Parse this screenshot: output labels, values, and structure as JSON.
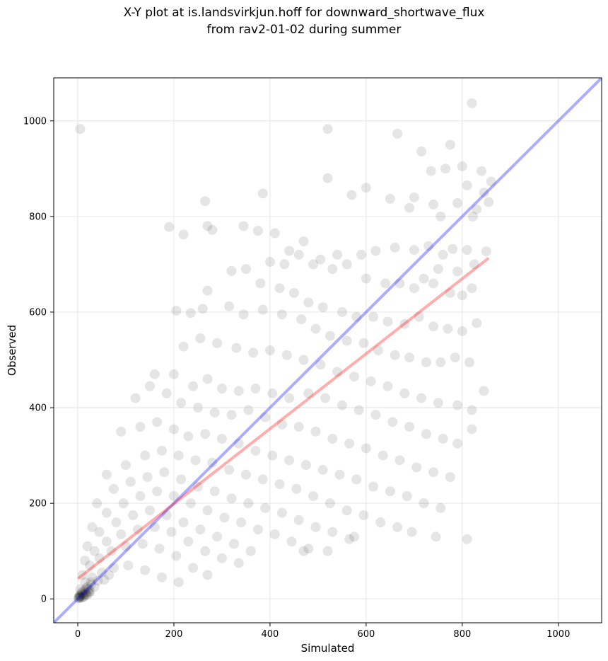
{
  "chart_data": {
    "type": "scatter",
    "title": [
      "X-Y plot at is.landsvirkjun.hoff for downward_shortwave_flux",
      "from rav2-01-02 during summer"
    ],
    "xlabel": "Simulated",
    "ylabel": "Observed",
    "xlim": [
      -50,
      1090
    ],
    "ylim": [
      -50,
      1090
    ],
    "xticks": [
      0,
      200,
      400,
      600,
      800,
      1000
    ],
    "yticks": [
      0,
      200,
      400,
      600,
      800,
      1000
    ],
    "grid": true,
    "colors": {
      "points": "#000000",
      "identity_line": "#0000ff",
      "fit_line": "#ff0000"
    },
    "identity_line": {
      "x": [
        -50,
        1090
      ],
      "y": [
        -50,
        1090
      ]
    },
    "fit_line": {
      "x": [
        0,
        855
      ],
      "y": [
        42,
        713
      ]
    },
    "series": [
      {
        "points": [
          [
            5,
            983
          ],
          [
            520,
            983
          ],
          [
            665,
            973
          ],
          [
            715,
            936
          ],
          [
            820,
            1037
          ],
          [
            775,
            950
          ],
          [
            735,
            895
          ],
          [
            840,
            895
          ],
          [
            765,
            900
          ],
          [
            800,
            905
          ],
          [
            860,
            873
          ],
          [
            810,
            865
          ],
          [
            845,
            850
          ],
          [
            855,
            830
          ],
          [
            790,
            828
          ],
          [
            830,
            815
          ],
          [
            822,
            800
          ],
          [
            265,
            832
          ],
          [
            385,
            848
          ],
          [
            570,
            845
          ],
          [
            600,
            860
          ],
          [
            520,
            880
          ],
          [
            650,
            837
          ],
          [
            700,
            840
          ],
          [
            755,
            800
          ],
          [
            740,
            825
          ],
          [
            690,
            818
          ],
          [
            190,
            778
          ],
          [
            220,
            762
          ],
          [
            270,
            780
          ],
          [
            280,
            772
          ],
          [
            345,
            780
          ],
          [
            375,
            770
          ],
          [
            410,
            765
          ],
          [
            440,
            728
          ],
          [
            470,
            748
          ],
          [
            505,
            710
          ],
          [
            540,
            720
          ],
          [
            590,
            720
          ],
          [
            620,
            728
          ],
          [
            660,
            735
          ],
          [
            700,
            730
          ],
          [
            730,
            738
          ],
          [
            760,
            720
          ],
          [
            780,
            732
          ],
          [
            810,
            730
          ],
          [
            850,
            727
          ],
          [
            790,
            685
          ],
          [
            750,
            690
          ],
          [
            720,
            670
          ],
          [
            320,
            686
          ],
          [
            350,
            690
          ],
          [
            400,
            705
          ],
          [
            430,
            700
          ],
          [
            460,
            720
          ],
          [
            490,
            700
          ],
          [
            530,
            690
          ],
          [
            560,
            700
          ],
          [
            600,
            670
          ],
          [
            640,
            660
          ],
          [
            670,
            660
          ],
          [
            700,
            650
          ],
          [
            740,
            660
          ],
          [
            775,
            640
          ],
          [
            800,
            635
          ],
          [
            825,
            700
          ],
          [
            820,
            650
          ],
          [
            270,
            645
          ],
          [
            380,
            660
          ],
          [
            420,
            650
          ],
          [
            450,
            640
          ],
          [
            480,
            620
          ],
          [
            510,
            610
          ],
          [
            550,
            600
          ],
          [
            580,
            590
          ],
          [
            615,
            590
          ],
          [
            645,
            580
          ],
          [
            680,
            575
          ],
          [
            710,
            590
          ],
          [
            740,
            570
          ],
          [
            770,
            565
          ],
          [
            800,
            560
          ],
          [
            830,
            577
          ],
          [
            205,
            603
          ],
          [
            235,
            598
          ],
          [
            260,
            607
          ],
          [
            315,
            612
          ],
          [
            345,
            595
          ],
          [
            385,
            605
          ],
          [
            425,
            595
          ],
          [
            465,
            585
          ],
          [
            495,
            565
          ],
          [
            525,
            550
          ],
          [
            560,
            540
          ],
          [
            595,
            535
          ],
          [
            625,
            520
          ],
          [
            660,
            510
          ],
          [
            690,
            505
          ],
          [
            725,
            495
          ],
          [
            755,
            495
          ],
          [
            785,
            505
          ],
          [
            815,
            495
          ],
          [
            845,
            435
          ],
          [
            220,
            528
          ],
          [
            255,
            545
          ],
          [
            290,
            535
          ],
          [
            330,
            525
          ],
          [
            365,
            515
          ],
          [
            400,
            520
          ],
          [
            435,
            510
          ],
          [
            470,
            500
          ],
          [
            505,
            490
          ],
          [
            540,
            475
          ],
          [
            575,
            465
          ],
          [
            610,
            455
          ],
          [
            645,
            445
          ],
          [
            680,
            430
          ],
          [
            715,
            420
          ],
          [
            750,
            410
          ],
          [
            790,
            405
          ],
          [
            820,
            395
          ],
          [
            160,
            470
          ],
          [
            200,
            470
          ],
          [
            240,
            445
          ],
          [
            270,
            460
          ],
          [
            300,
            440
          ],
          [
            335,
            435
          ],
          [
            370,
            440
          ],
          [
            405,
            430
          ],
          [
            440,
            420
          ],
          [
            480,
            430
          ],
          [
            515,
            420
          ],
          [
            550,
            405
          ],
          [
            585,
            395
          ],
          [
            620,
            385
          ],
          [
            655,
            370
          ],
          [
            690,
            360
          ],
          [
            725,
            345
          ],
          [
            760,
            335
          ],
          [
            790,
            325
          ],
          [
            820,
            355
          ],
          [
            120,
            420
          ],
          [
            150,
            445
          ],
          [
            185,
            430
          ],
          [
            215,
            410
          ],
          [
            250,
            400
          ],
          [
            285,
            390
          ],
          [
            320,
            385
          ],
          [
            355,
            395
          ],
          [
            390,
            380
          ],
          [
            425,
            365
          ],
          [
            460,
            360
          ],
          [
            495,
            350
          ],
          [
            530,
            335
          ],
          [
            565,
            325
          ],
          [
            600,
            315
          ],
          [
            635,
            300
          ],
          [
            670,
            290
          ],
          [
            705,
            275
          ],
          [
            740,
            265
          ],
          [
            775,
            255
          ],
          [
            810,
            125
          ],
          [
            90,
            350
          ],
          [
            130,
            360
          ],
          [
            165,
            370
          ],
          [
            200,
            355
          ],
          [
            230,
            340
          ],
          [
            265,
            345
          ],
          [
            300,
            335
          ],
          [
            335,
            325
          ],
          [
            370,
            310
          ],
          [
            405,
            300
          ],
          [
            440,
            290
          ],
          [
            475,
            280
          ],
          [
            510,
            270
          ],
          [
            545,
            260
          ],
          [
            580,
            250
          ],
          [
            615,
            235
          ],
          [
            650,
            225
          ],
          [
            685,
            215
          ],
          [
            720,
            200
          ],
          [
            755,
            190
          ],
          [
            745,
            130
          ],
          [
            60,
            260
          ],
          [
            100,
            280
          ],
          [
            140,
            300
          ],
          [
            175,
            310
          ],
          [
            210,
            300
          ],
          [
            245,
            290
          ],
          [
            280,
            285
          ],
          [
            315,
            270
          ],
          [
            350,
            260
          ],
          [
            385,
            250
          ],
          [
            420,
            240
          ],
          [
            455,
            230
          ],
          [
            490,
            215
          ],
          [
            525,
            200
          ],
          [
            560,
            185
          ],
          [
            595,
            175
          ],
          [
            630,
            160
          ],
          [
            665,
            150
          ],
          [
            695,
            140
          ],
          [
            575,
            130
          ],
          [
            40,
            200
          ],
          [
            75,
            230
          ],
          [
            110,
            245
          ],
          [
            145,
            255
          ],
          [
            180,
            265
          ],
          [
            215,
            250
          ],
          [
            250,
            235
          ],
          [
            285,
            225
          ],
          [
            320,
            210
          ],
          [
            355,
            200
          ],
          [
            390,
            190
          ],
          [
            425,
            180
          ],
          [
            460,
            165
          ],
          [
            495,
            150
          ],
          [
            530,
            140
          ],
          [
            565,
            125
          ],
          [
            470,
            100
          ],
          [
            520,
            100
          ],
          [
            30,
            150
          ],
          [
            60,
            180
          ],
          [
            95,
            200
          ],
          [
            130,
            215
          ],
          [
            165,
            225
          ],
          [
            200,
            215
          ],
          [
            235,
            200
          ],
          [
            270,
            185
          ],
          [
            305,
            170
          ],
          [
            340,
            160
          ],
          [
            375,
            145
          ],
          [
            410,
            135
          ],
          [
            445,
            120
          ],
          [
            480,
            105
          ],
          [
            20,
            110
          ],
          [
            45,
            140
          ],
          [
            80,
            160
          ],
          [
            115,
            175
          ],
          [
            150,
            185
          ],
          [
            185,
            175
          ],
          [
            220,
            160
          ],
          [
            255,
            145
          ],
          [
            290,
            130
          ],
          [
            325,
            115
          ],
          [
            360,
            100
          ],
          [
            15,
            80
          ],
          [
            35,
            100
          ],
          [
            60,
            120
          ],
          [
            90,
            135
          ],
          [
            125,
            145
          ],
          [
            160,
            150
          ],
          [
            195,
            140
          ],
          [
            230,
            120
          ],
          [
            265,
            100
          ],
          [
            300,
            85
          ],
          [
            335,
            75
          ],
          [
            10,
            50
          ],
          [
            25,
            70
          ],
          [
            45,
            85
          ],
          [
            70,
            100
          ],
          [
            100,
            110
          ],
          [
            135,
            115
          ],
          [
            170,
            105
          ],
          [
            205,
            90
          ],
          [
            240,
            65
          ],
          [
            270,
            50
          ],
          [
            5,
            20
          ],
          [
            15,
            35
          ],
          [
            30,
            45
          ],
          [
            50,
            55
          ],
          [
            75,
            65
          ],
          [
            105,
            70
          ],
          [
            140,
            60
          ],
          [
            175,
            45
          ],
          [
            210,
            35
          ],
          [
            3,
            5
          ],
          [
            8,
            12
          ],
          [
            12,
            8
          ],
          [
            18,
            22
          ],
          [
            22,
            15
          ],
          [
            28,
            30
          ],
          [
            35,
            25
          ],
          [
            42,
            38
          ],
          [
            55,
            40
          ],
          [
            65,
            50
          ],
          [
            2,
            2
          ],
          [
            4,
            8
          ],
          [
            6,
            4
          ],
          [
            9,
            15
          ],
          [
            11,
            3
          ],
          [
            14,
            18
          ],
          [
            17,
            10
          ],
          [
            20,
            25
          ],
          [
            24,
            12
          ],
          [
            27,
            35
          ],
          [
            1,
            1
          ],
          [
            3,
            3
          ],
          [
            5,
            6
          ],
          [
            7,
            2
          ],
          [
            10,
            10
          ],
          [
            13,
            5
          ],
          [
            16,
            14
          ],
          [
            19,
            8
          ],
          [
            23,
            20
          ],
          [
            26,
            16
          ]
        ]
      }
    ]
  }
}
